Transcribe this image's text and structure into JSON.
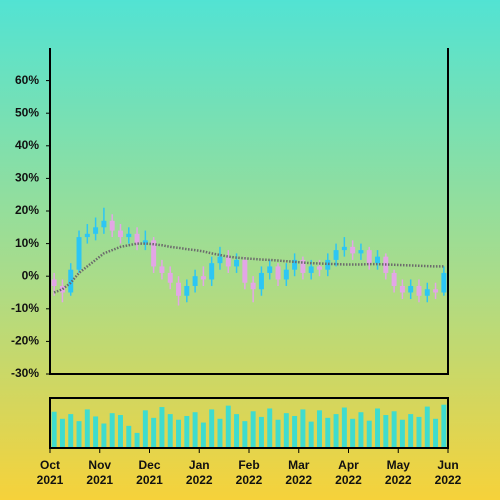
{
  "chart_data": {
    "type": "candlestick",
    "up_color": "#2cc6f4",
    "down_color": "#e3a6e6",
    "open": [
      -1,
      -3,
      -5,
      2,
      12,
      13,
      15,
      17,
      14,
      12,
      13,
      10,
      11,
      3,
      1,
      -2,
      -6,
      -3,
      0,
      -1,
      4,
      6,
      3,
      5,
      -2,
      -4,
      1,
      3,
      -1,
      2,
      5,
      1,
      3,
      2,
      5,
      8,
      9,
      7,
      8,
      4,
      6,
      1,
      -3,
      -5,
      -3,
      -6,
      -4,
      -5
    ],
    "high": [
      1,
      -1,
      4,
      14,
      16,
      18,
      21,
      19,
      16,
      15,
      15,
      14,
      12,
      5,
      3,
      0,
      -1,
      2,
      3,
      6,
      9,
      8,
      7,
      6,
      0,
      3,
      5,
      4,
      4,
      7,
      6,
      5,
      5,
      7,
      10,
      12,
      11,
      10,
      9,
      8,
      7,
      2,
      -1,
      -1,
      -1,
      -2,
      -2,
      3
    ],
    "low": [
      -6,
      -8,
      -6,
      1,
      10,
      11,
      13,
      12,
      10,
      10,
      8,
      8,
      1,
      -1,
      -4,
      -9,
      -8,
      -5,
      -3,
      -3,
      2,
      1,
      1,
      -4,
      -8,
      -6,
      -1,
      -3,
      -3,
      0,
      -1,
      -1,
      0,
      0,
      3,
      6,
      5,
      5,
      2,
      2,
      -1,
      -5,
      -7,
      -7,
      -8,
      -8,
      -7,
      -6
    ],
    "close": [
      -3,
      -5,
      2,
      12,
      13,
      15,
      17,
      14,
      12,
      13,
      10,
      11,
      3,
      1,
      -2,
      -6,
      -3,
      0,
      -1,
      4,
      6,
      3,
      5,
      -2,
      -4,
      1,
      3,
      -1,
      2,
      5,
      1,
      3,
      2,
      5,
      8,
      9,
      7,
      8,
      4,
      6,
      1,
      -3,
      -5,
      -3,
      -6,
      -4,
      -5,
      1
    ],
    "moving_average": {
      "color": "#6b6b6b",
      "values": [
        -5,
        -4,
        -2,
        1,
        3,
        5,
        7,
        8,
        9,
        9.5,
        10,
        10,
        9.8,
        9.5,
        9,
        8.7,
        8.3,
        8,
        7.6,
        7,
        6.5,
        6,
        5.7,
        5.5,
        5.3,
        5.1,
        5,
        4.8,
        4.6,
        4.4,
        4.2,
        4,
        3.9,
        3.8,
        3.7,
        3.6,
        3.6,
        3.6,
        3.7,
        3.7,
        3.6,
        3.5,
        3.4,
        3.3,
        3.2,
        3.1,
        3,
        3
      ]
    },
    "volume": {
      "color": "#3fdcce",
      "ylim": [
        0,
        100
      ],
      "values": [
        75,
        60,
        70,
        55,
        80,
        65,
        50,
        72,
        68,
        45,
        30,
        78,
        62,
        85,
        70,
        58,
        66,
        74,
        52,
        80,
        60,
        88,
        70,
        55,
        76,
        64,
        82,
        58,
        72,
        66,
        80,
        54,
        78,
        62,
        70,
        84,
        60,
        74,
        56,
        82,
        68,
        76,
        58,
        70,
        64,
        86,
        60,
        90
      ]
    },
    "xlim": [
      0,
      48
    ],
    "xticks": [
      {
        "value": 0,
        "label": "Oct 2021"
      },
      {
        "value": 6,
        "label": "Nov 2021"
      },
      {
        "value": 12,
        "label": "Dec 2021"
      },
      {
        "value": 18,
        "label": "Jan 2022"
      },
      {
        "value": 24,
        "label": "Feb 2022"
      },
      {
        "value": 30,
        "label": "Mar 2022"
      },
      {
        "value": 36,
        "label": "Apr 2022"
      },
      {
        "value": 42,
        "label": "May 2022"
      },
      {
        "value": 48,
        "label": "Jun 2022"
      }
    ],
    "ylim": [
      -30,
      70
    ],
    "yticks": [
      {
        "value": -30,
        "label": "-30%"
      },
      {
        "value": -20,
        "label": "-20%"
      },
      {
        "value": -10,
        "label": "-10%"
      },
      {
        "value": 0,
        "label": "0%"
      },
      {
        "value": 10,
        "label": "10%"
      },
      {
        "value": 20,
        "label": "20%"
      },
      {
        "value": 30,
        "label": "30%"
      },
      {
        "value": 40,
        "label": "40%"
      },
      {
        "value": 50,
        "label": "50%"
      },
      {
        "value": 60,
        "label": "60%"
      }
    ]
  }
}
